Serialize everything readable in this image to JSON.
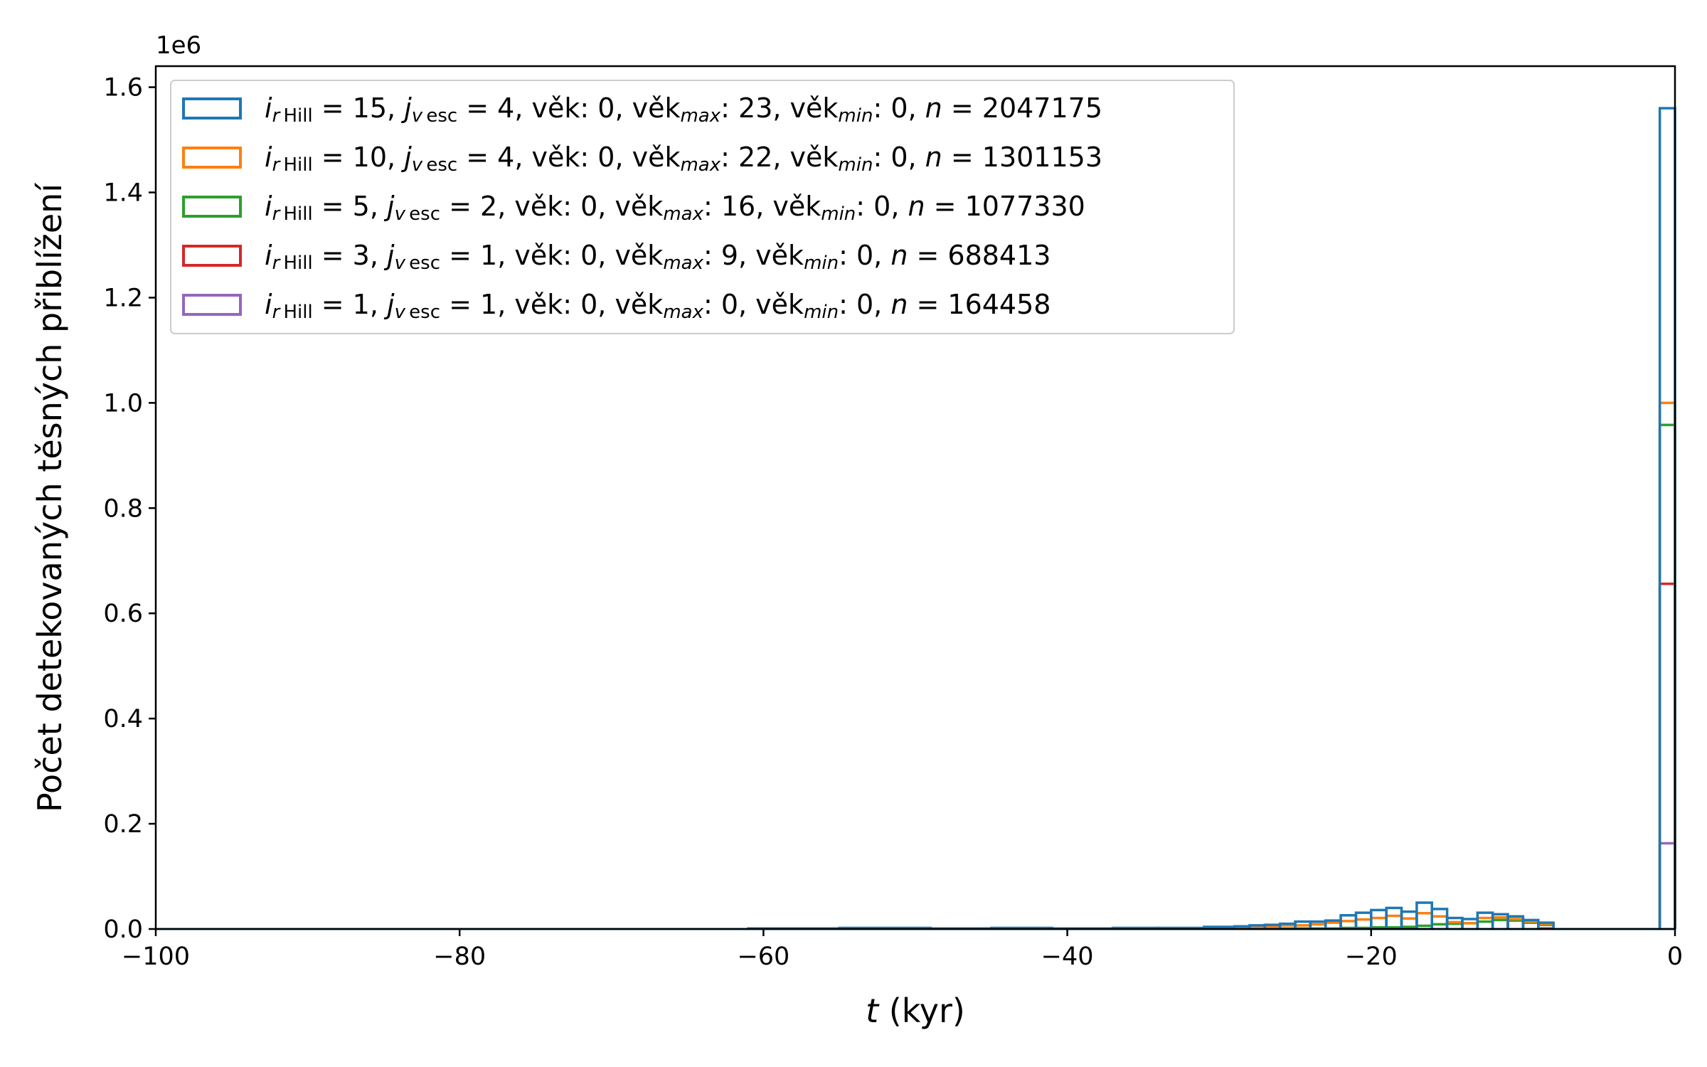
{
  "chart_data": {
    "type": "histogram-step",
    "multiplier": "1e6",
    "ylabel": "Počet detekovaných těsných přiblížení",
    "xlabel": {
      "var": "t",
      "unit": " (kyr)"
    },
    "xlim": [
      -100,
      0
    ],
    "ylim": [
      0,
      1.64
    ],
    "xticks": [
      {
        "v": -100,
        "label": "−100"
      },
      {
        "v": -80,
        "label": "−80"
      },
      {
        "v": -60,
        "label": "−60"
      },
      {
        "v": -40,
        "label": "−40"
      },
      {
        "v": -20,
        "label": "−20"
      },
      {
        "v": 0,
        "label": "0"
      }
    ],
    "yticks": [
      {
        "v": 0,
        "label": "0.0"
      },
      {
        "v": 0.2,
        "label": "0.2"
      },
      {
        "v": 0.4,
        "label": "0.4"
      },
      {
        "v": 0.6,
        "label": "0.6"
      },
      {
        "v": 0.8,
        "label": "0.8"
      },
      {
        "v": 1.0,
        "label": "1.0"
      },
      {
        "v": 1.2,
        "label": "1.2"
      },
      {
        "v": 1.4,
        "label": "1.4"
      },
      {
        "v": 1.6,
        "label": "1.6"
      }
    ],
    "grid": false,
    "legend_position": "upper-left",
    "series": [
      {
        "name": "i_rHill = 15, j_vesc = 4, věk: 0, věk_max: 23, věk_min: 0, n = 2047175",
        "ihill": "15",
        "jvesc": "4",
        "vek": "0",
        "vekmax": "23",
        "vekmin": "0",
        "n": "2047175",
        "color": "#1f77b4",
        "bins": [
          [
            -61,
            -55,
            0.001
          ],
          [
            -55,
            -49,
            0.002
          ],
          [
            -49,
            -45,
            0.001
          ],
          [
            -45,
            -41,
            0.002
          ],
          [
            -41,
            -37,
            0.001
          ],
          [
            -37,
            -34,
            0.002
          ],
          [
            -34,
            -31,
            0.002
          ],
          [
            -31,
            -29,
            0.004
          ],
          [
            -29,
            -28,
            0.005
          ],
          [
            -28,
            -27,
            0.007
          ],
          [
            -27,
            -26,
            0.008
          ],
          [
            -26,
            -25,
            0.01
          ],
          [
            -25,
            -24,
            0.014
          ],
          [
            -24,
            -23,
            0.014
          ],
          [
            -23,
            -22,
            0.016
          ],
          [
            -22,
            -21,
            0.026
          ],
          [
            -21,
            -20,
            0.031
          ],
          [
            -20,
            -19,
            0.036
          ],
          [
            -19,
            -18,
            0.04
          ],
          [
            -18,
            -17,
            0.033
          ],
          [
            -17,
            -16,
            0.05
          ],
          [
            -16,
            -15,
            0.038
          ],
          [
            -15,
            -14,
            0.021
          ],
          [
            -14,
            -13,
            0.019
          ],
          [
            -13,
            -12,
            0.031
          ],
          [
            -12,
            -11,
            0.028
          ],
          [
            -11,
            -10,
            0.024
          ],
          [
            -10,
            -9,
            0.017
          ],
          [
            -9,
            -8,
            0.012
          ],
          [
            -1,
            0,
            1.56
          ]
        ]
      },
      {
        "name": "i_rHill = 10, j_vesc = 4, věk: 0, věk_max: 22, věk_min: 0, n = 1301153",
        "ihill": "10",
        "jvesc": "4",
        "vek": "0",
        "vekmax": "22",
        "vekmin": "0",
        "n": "1301153",
        "color": "#ff7f0e",
        "bins": [
          [
            -37,
            -31,
            0.001
          ],
          [
            -31,
            -28,
            0.002
          ],
          [
            -28,
            -26,
            0.004
          ],
          [
            -26,
            -24,
            0.007
          ],
          [
            -24,
            -23,
            0.009
          ],
          [
            -23,
            -22,
            0.012
          ],
          [
            -22,
            -21,
            0.015
          ],
          [
            -21,
            -20,
            0.018
          ],
          [
            -20,
            -19,
            0.021
          ],
          [
            -19,
            -18,
            0.025
          ],
          [
            -18,
            -17,
            0.02
          ],
          [
            -17,
            -16,
            0.03
          ],
          [
            -16,
            -15,
            0.024
          ],
          [
            -15,
            -14,
            0.013
          ],
          [
            -14,
            -13,
            0.011
          ],
          [
            -13,
            -12,
            0.021
          ],
          [
            -12,
            -11,
            0.022
          ],
          [
            -11,
            -10,
            0.019
          ],
          [
            -10,
            -9,
            0.014
          ],
          [
            -9,
            -8,
            0.01
          ],
          [
            -1,
            0,
            1.0
          ]
        ]
      },
      {
        "name": "i_rHill = 5, j_vesc = 2, věk: 0, věk_max: 16, věk_min: 0, n = 1077330",
        "ihill": "5",
        "jvesc": "2",
        "vek": "0",
        "vekmax": "16",
        "vekmin": "0",
        "n": "1077330",
        "color": "#2ca02c",
        "bins": [
          [
            -26,
            -22,
            0.001
          ],
          [
            -22,
            -20,
            0.002
          ],
          [
            -20,
            -18,
            0.003
          ],
          [
            -18,
            -17,
            0.004
          ],
          [
            -17,
            -16,
            0.006
          ],
          [
            -16,
            -15,
            0.009
          ],
          [
            -15,
            -14,
            0.01
          ],
          [
            -14,
            -13,
            0.011
          ],
          [
            -13,
            -12,
            0.014
          ],
          [
            -12,
            -11,
            0.017
          ],
          [
            -11,
            -10,
            0.016
          ],
          [
            -10,
            -9,
            0.012
          ],
          [
            -9,
            -8,
            0.008
          ],
          [
            -1,
            0,
            0.958
          ]
        ]
      },
      {
        "name": "i_rHill = 3, j_vesc = 1, věk: 0, věk_max: 9, věk_min: 0, n = 688413",
        "ihill": "3",
        "jvesc": "1",
        "vek": "0",
        "vekmax": "9",
        "vekmin": "0",
        "n": "688413",
        "color": "#d62728",
        "bins": [
          [
            -9,
            -8,
            0.001
          ],
          [
            -1,
            0,
            0.656
          ]
        ]
      },
      {
        "name": "i_rHill = 1, j_vesc = 1, věk: 0, věk_max: 0, věk_min: 0, n = 164458",
        "ihill": "1",
        "jvesc": "1",
        "vek": "0",
        "vekmax": "0",
        "vekmin": "0",
        "n": "164458",
        "color": "#9467bd",
        "bins": [
          [
            -1,
            0,
            0.163
          ]
        ]
      }
    ]
  }
}
